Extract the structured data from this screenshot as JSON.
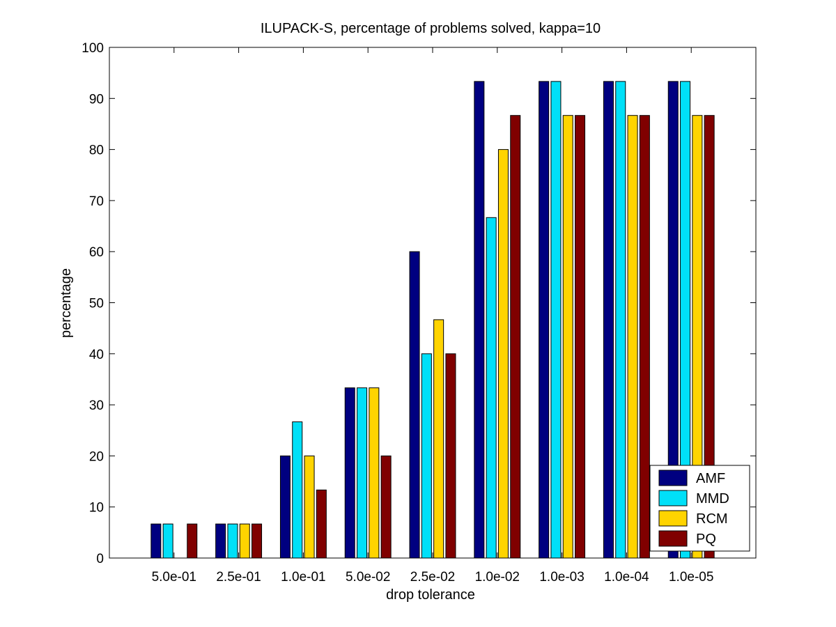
{
  "chart_data": {
    "type": "bar",
    "title": "ILUPACK-S, percentage of problems solved, kappa=10",
    "xlabel": "drop tolerance",
    "ylabel": "percentage",
    "ylim": [
      0,
      100
    ],
    "yticks": [
      "0",
      "10",
      "20",
      "30",
      "40",
      "50",
      "60",
      "70",
      "80",
      "90",
      "100"
    ],
    "categories": [
      "5.0e-01",
      "2.5e-01",
      "1.0e-01",
      "5.0e-02",
      "2.5e-02",
      "1.0e-02",
      "1.0e-03",
      "1.0e-04",
      "1.0e-05"
    ],
    "series": [
      {
        "name": "AMF",
        "color": "#000080",
        "values": [
          6.67,
          6.67,
          20.0,
          33.33,
          60.0,
          93.33,
          93.33,
          93.33,
          93.33
        ]
      },
      {
        "name": "MMD",
        "color": "#00e0f8",
        "values": [
          6.67,
          6.67,
          26.67,
          33.33,
          40.0,
          66.67,
          93.33,
          93.33,
          93.33
        ]
      },
      {
        "name": "RCM",
        "color": "#ffd400",
        "values": [
          0,
          6.67,
          20.0,
          33.33,
          46.67,
          80.0,
          86.67,
          86.67,
          86.67
        ]
      },
      {
        "name": "PQ",
        "color": "#800000",
        "values": [
          6.67,
          6.67,
          13.33,
          20.0,
          40.0,
          86.67,
          86.67,
          86.67,
          86.67
        ]
      }
    ],
    "grid": false,
    "legend_position": "bottom-right"
  }
}
